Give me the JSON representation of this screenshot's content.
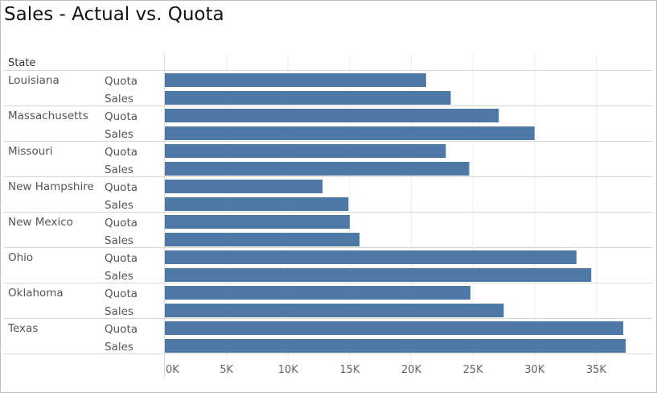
{
  "title": "Sales - Actual vs. Quota",
  "row_header": "State",
  "colors": {
    "bar": "#4e79a7",
    "row_divider": "#d9d9d9",
    "gridline": "#eeeeee",
    "label_text": "#555555",
    "header_text": "#333333",
    "tick_text": "#666666"
  },
  "chart_data": {
    "type": "bar",
    "orientation": "horizontal",
    "title": "Sales - Actual vs. Quota",
    "xlabel": "",
    "ylabel": "State",
    "measures": [
      "Quota",
      "Sales"
    ],
    "xlim": [
      0,
      38500
    ],
    "x_ticks": [
      0,
      5000,
      10000,
      15000,
      20000,
      25000,
      30000,
      35000
    ],
    "x_tick_labels": [
      "0K",
      "5K",
      "10K",
      "15K",
      "20K",
      "25K",
      "30K",
      "35K"
    ],
    "grid": true,
    "categories": [
      "Louisiana",
      "Massachusetts",
      "Missouri",
      "New Hampshire",
      "New Mexico",
      "Ohio",
      "Oklahoma",
      "Texas"
    ],
    "series": [
      {
        "name": "Quota",
        "values": [
          21200,
          27100,
          22800,
          12800,
          15000,
          33400,
          24800,
          37200
        ]
      },
      {
        "name": "Sales",
        "values": [
          23200,
          30000,
          24700,
          14900,
          15800,
          34600,
          27500,
          37400
        ]
      }
    ]
  }
}
